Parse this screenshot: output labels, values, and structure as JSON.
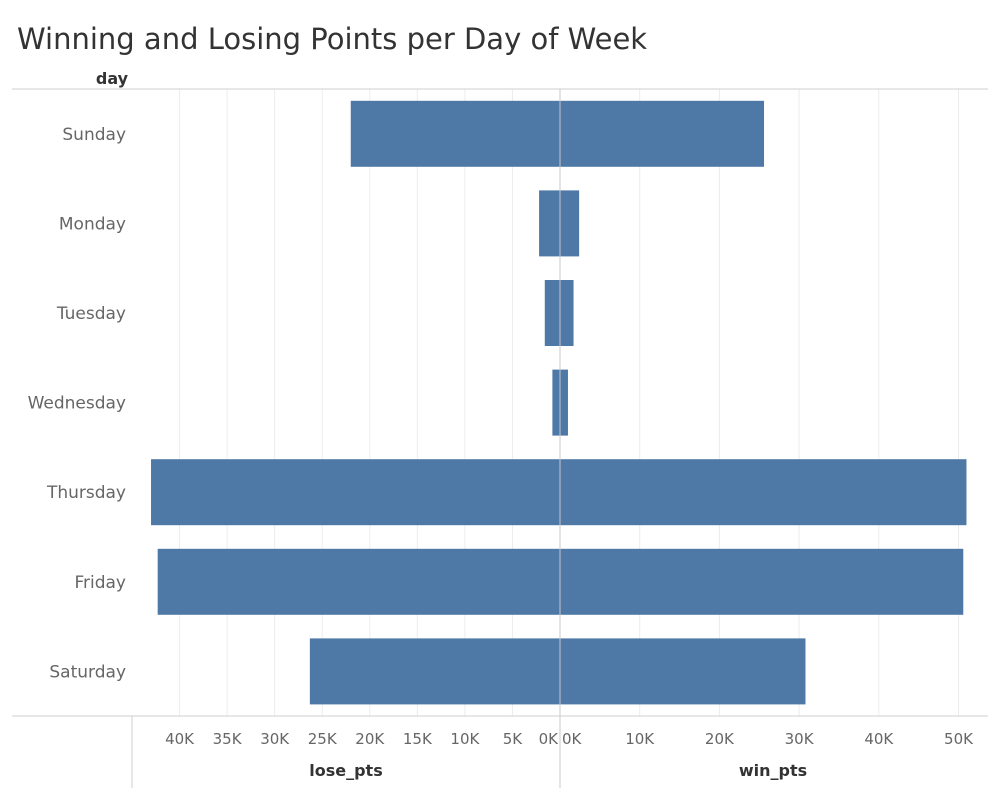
{
  "title": "Winning and Losing Points per Day of Week",
  "chart_data": {
    "type": "bar",
    "orientation": "horizontal-butterfly",
    "title": "Winning and Losing Points per Day of Week",
    "row_header": "day",
    "categories": [
      "Sunday",
      "Monday",
      "Tuesday",
      "Wednesday",
      "Thursday",
      "Friday",
      "Saturday"
    ],
    "series": [
      {
        "name": "lose_pts",
        "values": [
          22000,
          2200,
          1600,
          800,
          43000,
          42300,
          26300
        ]
      },
      {
        "name": "win_pts",
        "values": [
          25600,
          2400,
          1700,
          1000,
          51000,
          50600,
          30800
        ]
      }
    ],
    "lose_axis": {
      "label": "lose_pts",
      "reversed": true,
      "range": [
        0,
        45000
      ],
      "ticks": [
        40000,
        35000,
        30000,
        25000,
        20000,
        15000,
        10000,
        5000,
        0
      ],
      "tick_labels": [
        "40K",
        "35K",
        "30K",
        "25K",
        "20K",
        "15K",
        "10K",
        "5K",
        "0K"
      ]
    },
    "win_axis": {
      "label": "win_pts",
      "range": [
        0,
        53000
      ],
      "ticks": [
        0,
        10000,
        20000,
        30000,
        40000,
        50000
      ],
      "tick_labels": [
        "0K",
        "10K",
        "20K",
        "30K",
        "40K",
        "50K"
      ]
    },
    "color": "#4e79a7",
    "grid": true,
    "legend": "none"
  }
}
